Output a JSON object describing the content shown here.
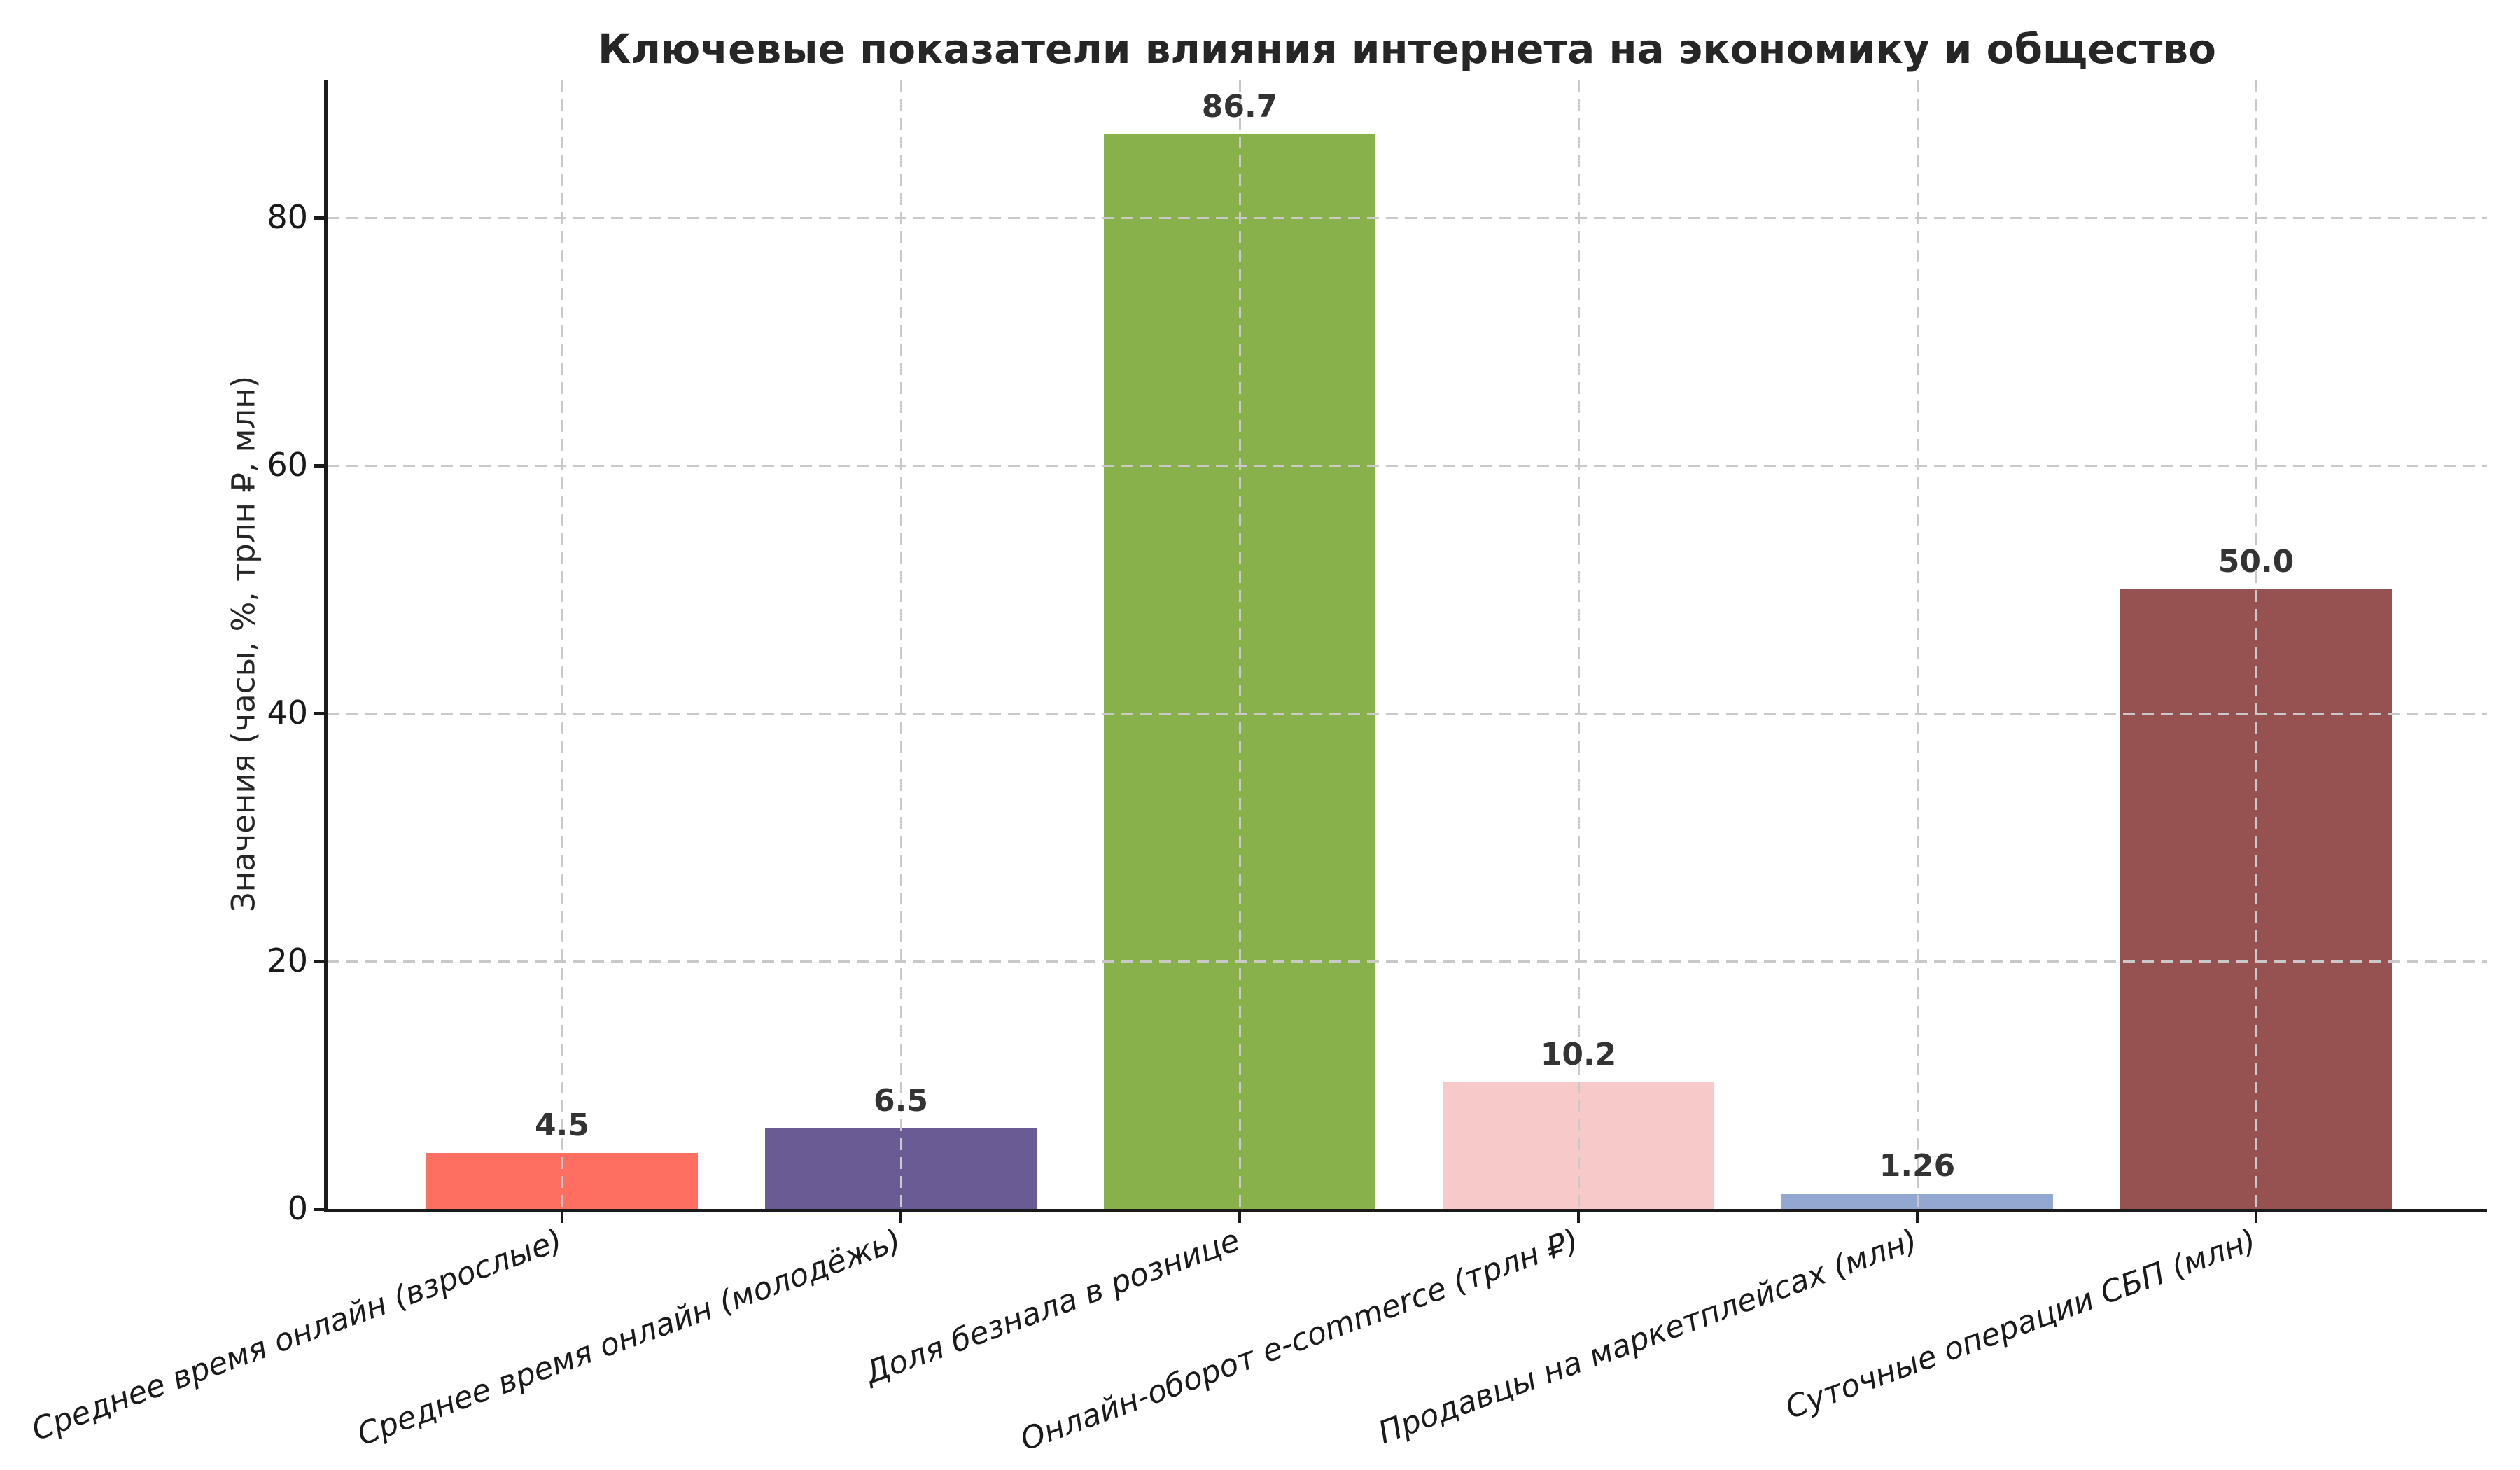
{
  "chart_data": {
    "type": "bar",
    "title": "Ключевые показатели влияния интернета на экономику и общество",
    "ylabel": "Значения (часы, %, трлн ₽, млн)",
    "xlabel": "",
    "categories": [
      "Среднее время онлайн (взрослые)",
      "Среднее время онлайн (молодёжь)",
      "Доля безнала в рознице",
      "Онлайн-оборот e-commerce (трлн ₽)",
      "Продавцы на маркетплейсах (млн)",
      "Суточные операции СБП (млн)"
    ],
    "values": [
      4.5,
      6.5,
      86.7,
      10.2,
      1.26,
      50.0
    ],
    "value_labels": [
      "4.5",
      "6.5",
      "86.7",
      "10.2",
      "1.26",
      "50.0"
    ],
    "bar_colors": [
      "#FF6F61",
      "#6B5B95",
      "#88B04B",
      "#F7CAC9",
      "#92A8D1",
      "#955251"
    ],
    "yticks": [
      0,
      20,
      40,
      60,
      80
    ],
    "ytick_labels": [
      "0",
      "20",
      "40",
      "60",
      "80"
    ],
    "ylim": [
      0,
      91.1
    ],
    "grid": {
      "on": true,
      "style": "dashed",
      "color": "#c9c9c9",
      "drawn_over_bars": true
    },
    "legend": null,
    "xtick_label_rotation_deg": 20,
    "colors": {
      "axis": "#1a1a1a",
      "title_text": "#262626",
      "value_label_text": "#333333",
      "background": "#ffffff"
    }
  }
}
